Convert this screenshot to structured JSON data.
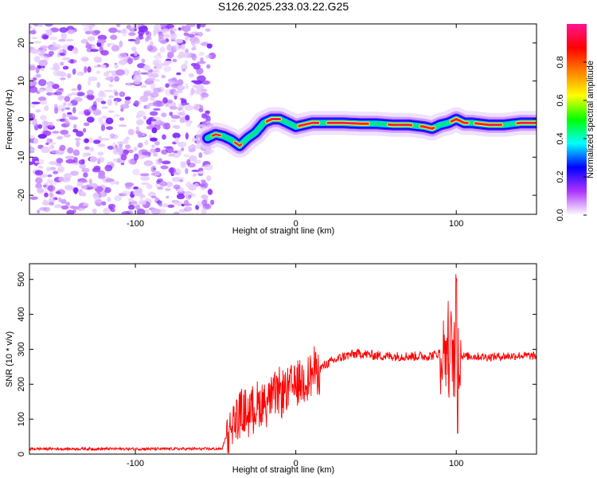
{
  "title": "S126.2025.233.03.22.G25",
  "chart_data": [
    {
      "type": "heatmap",
      "title": "",
      "xlabel": "Height of straight line (km)",
      "ylabel": "Frequency (Hz)",
      "xlim": [
        -166,
        150
      ],
      "ylim": [
        -25,
        25
      ],
      "xticks": [
        -100,
        0,
        100
      ],
      "xtick_labels": [
        "-100",
        "0",
        "100"
      ],
      "yticks": [
        -20,
        -10,
        0,
        10,
        20
      ],
      "ytick_labels": [
        "-20",
        "-10",
        "0",
        "10",
        "20"
      ],
      "noise_region_x": [
        -166,
        -55
      ],
      "signal_track": {
        "x": [
          -55,
          -50,
          -45,
          -40,
          -35,
          -30,
          -25,
          -20,
          -15,
          -10,
          -5,
          0,
          5,
          10,
          20,
          30,
          40,
          50,
          60,
          70,
          80,
          85,
          90,
          95,
          100,
          105,
          110,
          120,
          130,
          140,
          150
        ],
        "y": [
          -5,
          -4,
          -4.5,
          -5.5,
          -7,
          -5,
          -3.5,
          -1,
          0,
          0,
          -1,
          -2,
          -1.5,
          -1,
          -1,
          -1,
          -1.2,
          -1.2,
          -1.5,
          -1.5,
          -2,
          -2.5,
          -1.5,
          -1,
          0,
          -1,
          -1,
          -1.5,
          -1.5,
          -1,
          -1
        ]
      },
      "colorbar": {
        "label": "Normalized spectral amplitude",
        "ticks": [
          0.0,
          0.2,
          0.4,
          0.6,
          0.8
        ],
        "tick_labels": [
          "0.0",
          "0.2",
          "0.4",
          "0.6",
          "0.8"
        ],
        "colors": [
          "#ffffff",
          "#ad33ff",
          "#0000ff",
          "#00ffff",
          "#00ff00",
          "#ffff00",
          "#ff8000",
          "#ff0000",
          "#ff1493"
        ]
      }
    },
    {
      "type": "line",
      "title": "",
      "xlabel": "Height of straight line (km)",
      "ylabel": "SNR (10 * v/v)",
      "xlim": [
        -166,
        150
      ],
      "ylim": [
        0,
        545
      ],
      "xticks": [
        -100,
        0,
        100
      ],
      "xtick_labels": [
        "-100",
        "0",
        "100"
      ],
      "yticks": [
        0,
        100,
        200,
        300,
        400,
        500
      ],
      "ytick_labels": [
        "0",
        "100",
        "200",
        "300",
        "400",
        "500"
      ],
      "series": [
        {
          "name": "SNR",
          "color": "#ff0000",
          "x": [
            -166,
            -140,
            -120,
            -100,
            -80,
            -60,
            -46,
            -43,
            -40,
            -35,
            -30,
            -25,
            -20,
            -15,
            -10,
            -5,
            0,
            5,
            10,
            15,
            20,
            25,
            30,
            35,
            40,
            45,
            50,
            60,
            70,
            80,
            85,
            90,
            95,
            98,
            100,
            102,
            105,
            110,
            120,
            130,
            140,
            150
          ],
          "y": [
            15,
            15,
            15,
            15,
            15,
            15,
            15,
            55,
            85,
            115,
            120,
            135,
            150,
            160,
            175,
            185,
            200,
            215,
            230,
            245,
            260,
            270,
            280,
            285,
            288,
            285,
            282,
            280,
            280,
            280,
            282,
            290,
            300,
            290,
            270,
            285,
            280,
            280,
            278,
            280,
            282,
            280
          ]
        }
      ]
    }
  ]
}
